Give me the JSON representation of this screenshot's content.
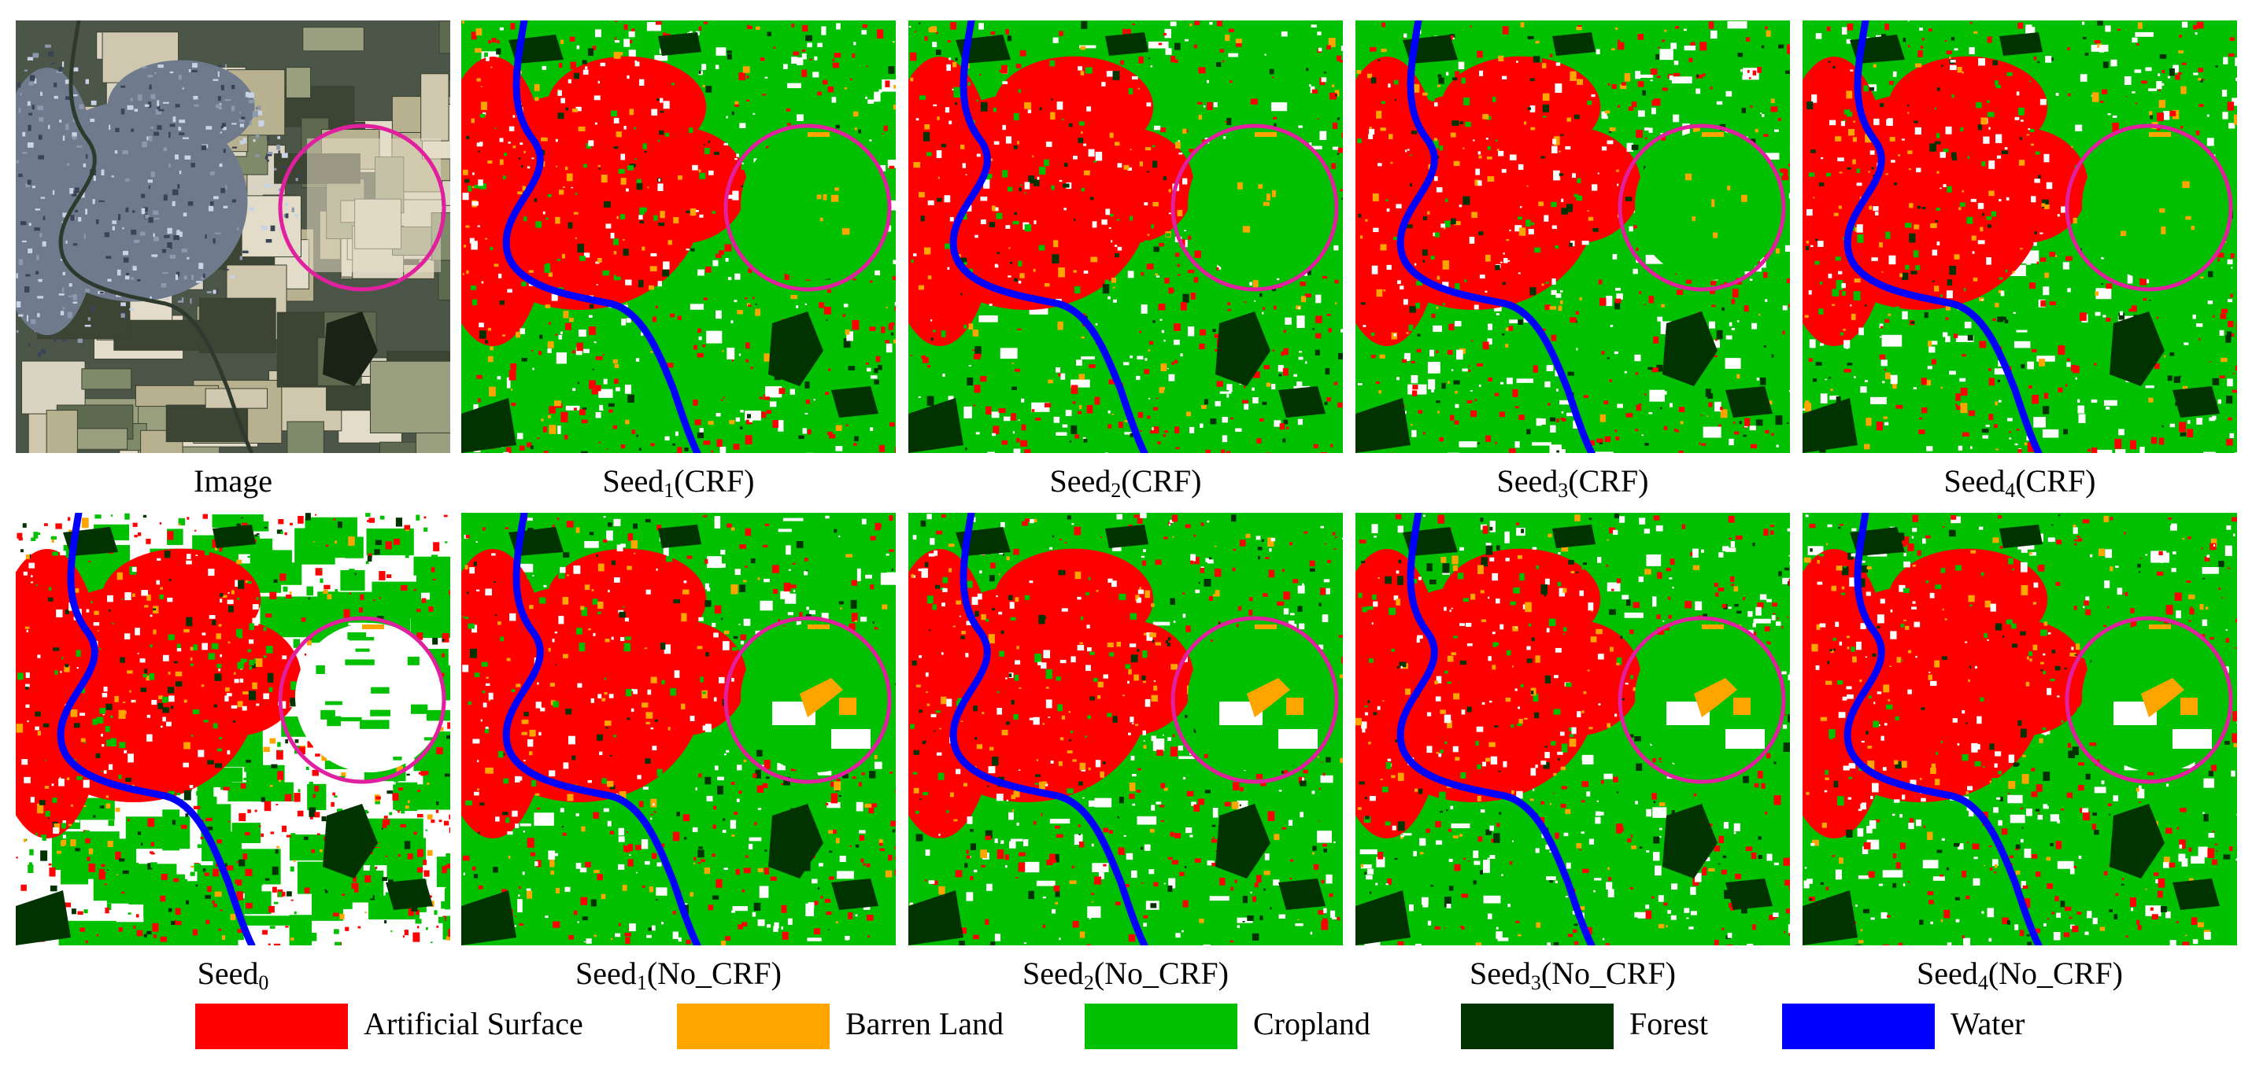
{
  "figure": {
    "panels": [
      {
        "id": "image",
        "kind": "image",
        "caption_base": "Image",
        "caption_sub": "",
        "caption_suffix": "",
        "highlight_region": "circle"
      },
      {
        "id": "seed1-crf",
        "kind": "crf",
        "caption_base": "Seed",
        "caption_sub": "1",
        "caption_suffix": "(CRF)",
        "highlight_region": "circle"
      },
      {
        "id": "seed2-crf",
        "kind": "crf",
        "caption_base": "Seed",
        "caption_sub": "2",
        "caption_suffix": "(CRF)",
        "highlight_region": "circle"
      },
      {
        "id": "seed3-crf",
        "kind": "crf",
        "caption_base": "Seed",
        "caption_sub": "3",
        "caption_suffix": "(CRF)",
        "highlight_region": "circle"
      },
      {
        "id": "seed4-crf",
        "kind": "crf",
        "caption_base": "Seed",
        "caption_sub": "4",
        "caption_suffix": "(CRF)",
        "highlight_region": "circle"
      },
      {
        "id": "seed0",
        "kind": "seed0",
        "caption_base": "Seed",
        "caption_sub": "0",
        "caption_suffix": "",
        "highlight_region": "circle"
      },
      {
        "id": "seed1-nocrf",
        "kind": "nocrf",
        "caption_base": "Seed",
        "caption_sub": "1",
        "caption_suffix": "(No_CRF)",
        "highlight_region": "circle"
      },
      {
        "id": "seed2-nocrf",
        "kind": "nocrf",
        "caption_base": "Seed",
        "caption_sub": "2",
        "caption_suffix": "(No_CRF)",
        "highlight_region": "circle"
      },
      {
        "id": "seed3-nocrf",
        "kind": "nocrf",
        "caption_base": "Seed",
        "caption_sub": "3",
        "caption_suffix": "(No_CRF)",
        "highlight_region": "circle"
      },
      {
        "id": "seed4-nocrf",
        "kind": "nocrf",
        "caption_base": "Seed",
        "caption_sub": "4",
        "caption_suffix": "(No_CRF)",
        "highlight_region": "circle"
      }
    ],
    "highlight_color": "#e0209e"
  },
  "legend": {
    "items": [
      {
        "label": "Artificial Surface",
        "color": "#ff0000"
      },
      {
        "label": "Barren Land",
        "color": "#ffa500"
      },
      {
        "label": "Cropland",
        "color": "#00c000"
      },
      {
        "label": "Forest",
        "color": "#003300"
      },
      {
        "label": "Water",
        "color": "#0000ff"
      }
    ]
  }
}
